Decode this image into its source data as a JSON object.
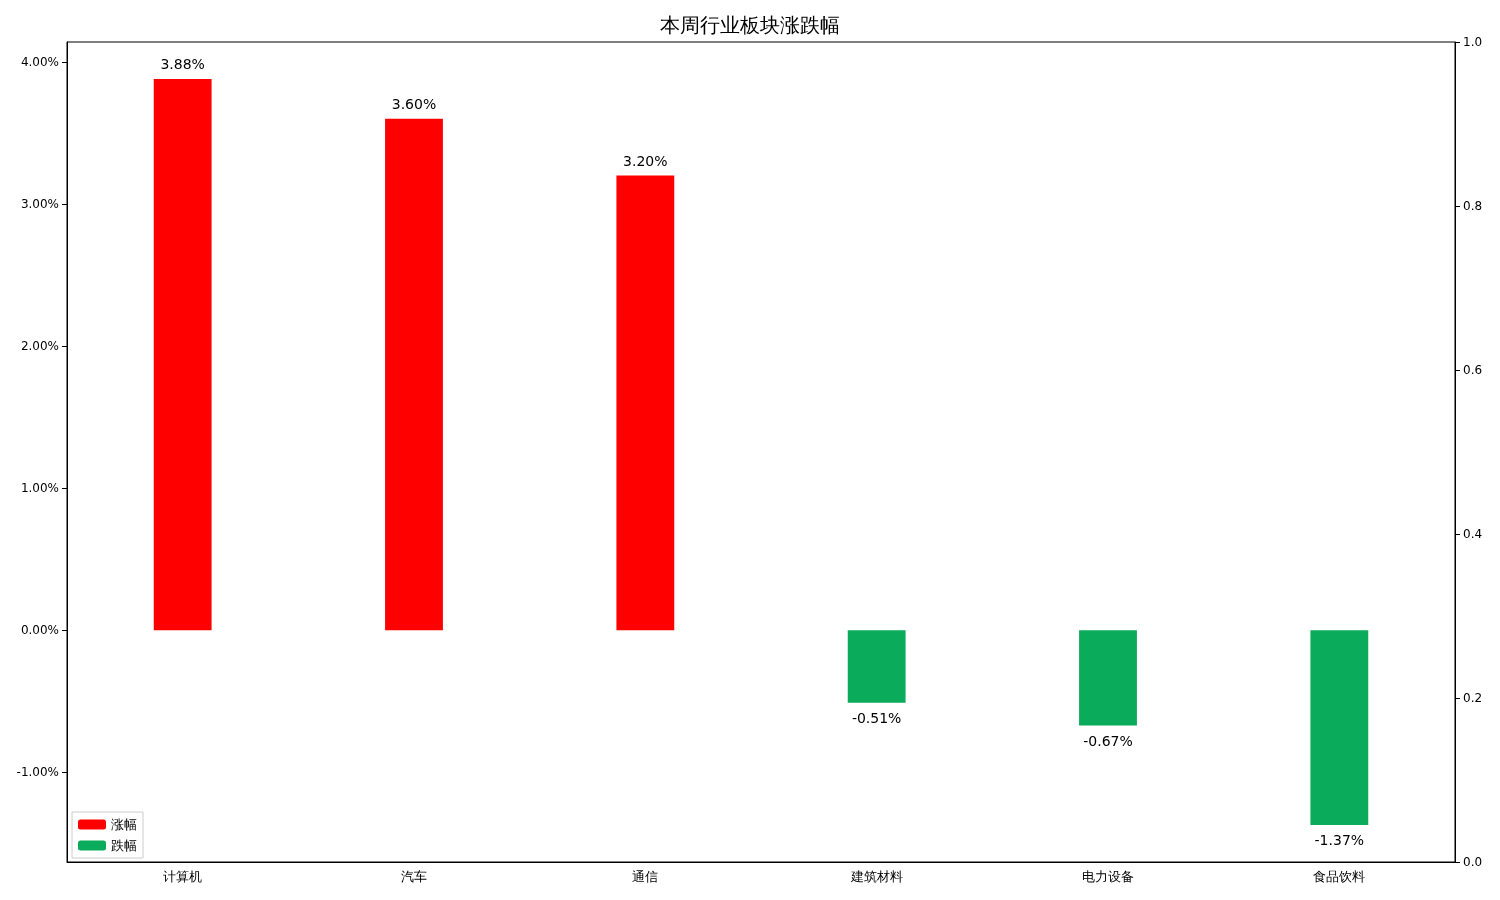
{
  "chart_data": {
    "type": "bar",
    "title": "本周行业板块涨跌幅",
    "categories": [
      "计算机",
      "汽车",
      "通信",
      "建筑材料",
      "电力设备",
      "食品饮料"
    ],
    "series": [
      {
        "name": "涨幅",
        "color": "#ff0000",
        "values": [
          3.88,
          3.6,
          3.2,
          null,
          null,
          null
        ],
        "value_labels": [
          "3.88%",
          "3.60%",
          "3.20%",
          null,
          null,
          null
        ]
      },
      {
        "name": "跌幅",
        "color": "#0aab5a",
        "values": [
          null,
          null,
          null,
          -0.51,
          -0.67,
          -1.37
        ],
        "value_labels": [
          null,
          null,
          null,
          "-0.51%",
          "-0.67%",
          "-1.37%"
        ]
      }
    ],
    "ylim": [
      -1.63,
      4.14
    ],
    "yticks": [
      {
        "value": -1,
        "label": "-1.00%"
      },
      {
        "value": 0,
        "label": "0.00%"
      },
      {
        "value": 1,
        "label": "1.00%"
      },
      {
        "value": 2,
        "label": "2.00%"
      },
      {
        "value": 3,
        "label": "3.00%"
      },
      {
        "value": 4,
        "label": "4.00%"
      }
    ],
    "y2lim": [
      0,
      1
    ],
    "y2ticks": [
      {
        "value": 0,
        "label": "0.0"
      },
      {
        "value": 0.2,
        "label": "0.2"
      },
      {
        "value": 0.4,
        "label": "0.4"
      },
      {
        "value": 0.6,
        "label": "0.6"
      },
      {
        "value": 0.8,
        "label": "0.8"
      },
      {
        "value": 1,
        "label": "1.0"
      }
    ],
    "grid": false,
    "legend": "bottom left"
  }
}
